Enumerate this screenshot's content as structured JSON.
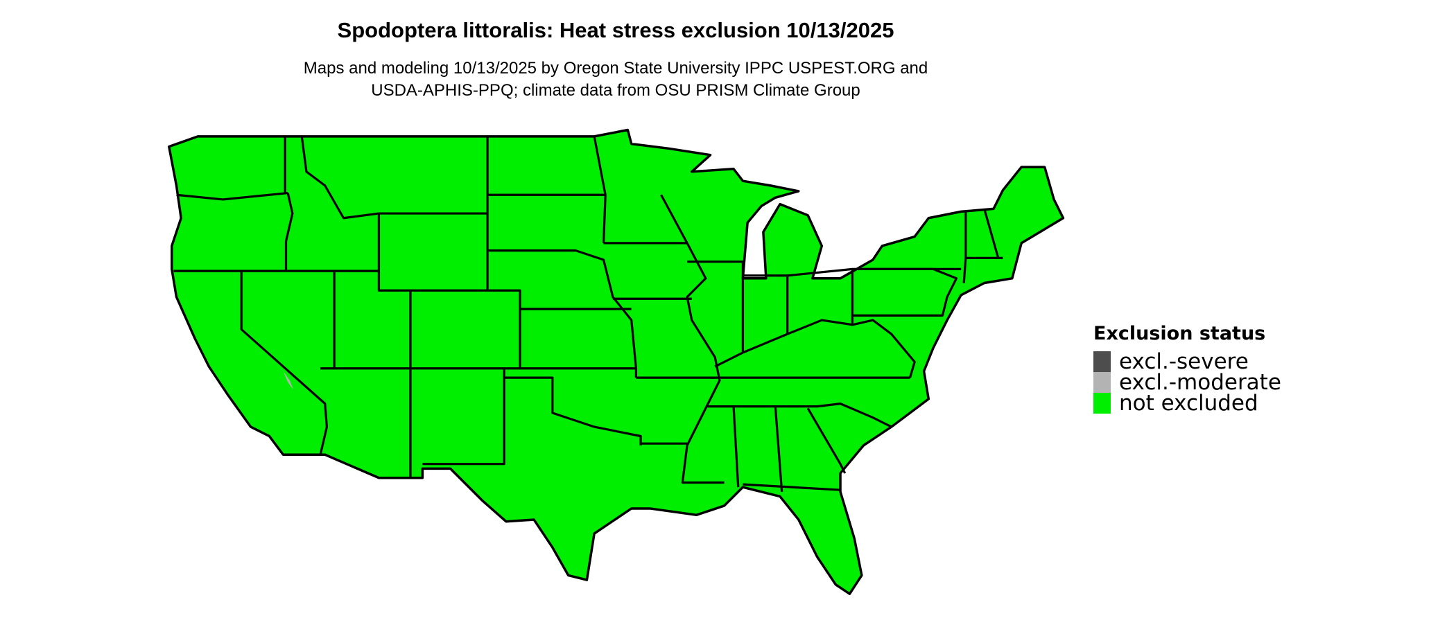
{
  "title": "Spodoptera littoralis: Heat stress exclusion 10/13/2025",
  "subtitle_lines": [
    "Maps and modeling 10/13/2025 by Oregon State University IPPC USPEST.ORG and",
    "USDA-APHIS-PPQ; climate data from OSU PRISM Climate Group"
  ],
  "legend": {
    "title": "Exclusion status",
    "items": [
      {
        "label": "excl.-severe",
        "color": "#4d4d4d"
      },
      {
        "label": "excl.-moderate",
        "color": "#b3b3b3"
      },
      {
        "label": "not excluded",
        "color": "#00ee00"
      }
    ]
  },
  "map": {
    "region": "contiguous United States",
    "fill_color": "#00ee00",
    "border_color": "#000000",
    "dominant_status": "not excluded"
  }
}
